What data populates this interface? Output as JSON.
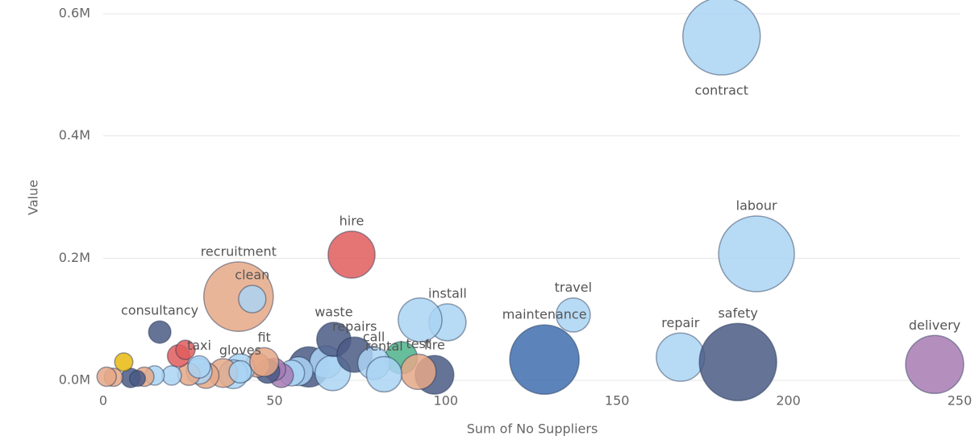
{
  "chart_data": {
    "type": "scatter",
    "x_label": "Sum of No Suppliers",
    "y_label": "Value",
    "xlim": [
      0,
      250
    ],
    "xticks": [
      0,
      50,
      100,
      150,
      200,
      250
    ],
    "ylim": [
      0,
      600000
    ],
    "yticks": [
      {
        "value": 0,
        "label": "0.0M"
      },
      {
        "value": 200000,
        "label": "0.2M"
      },
      {
        "value": 400000,
        "label": "0.4M"
      },
      {
        "value": 600000,
        "label": "0.6M"
      }
    ],
    "grid": true,
    "series": [
      {
        "x": [
          60,
          65,
          67,
          57,
          55,
          52,
          50,
          48,
          45,
          40,
          38,
          35,
          30,
          28,
          25,
          22,
          24,
          20,
          15,
          12,
          8,
          6,
          3,
          1,
          10,
          180.5,
          190.7,
          72.5,
          39.5,
          43.5,
          16.5,
          100.5,
          92.5,
          137.2,
          168.5,
          185.3,
          128.8,
          242.7,
          96.7,
          67.3,
          73.4,
          87,
          92,
          79,
          82,
          47,
          28,
          40
        ],
        "values": [
          22000,
          30000,
          12000,
          15000,
          12000,
          8000,
          18000,
          15000,
          25000,
          20000,
          10000,
          12000,
          8000,
          15000,
          10000,
          40000,
          50000,
          8000,
          8000,
          6000,
          4000,
          30000,
          5000,
          6000,
          3000,
          563000,
          207000,
          205700,
          137000,
          133000,
          79000,
          95000,
          99000,
          107000,
          38000,
          30000,
          34000,
          26000,
          9000,
          67000,
          42000,
          37000,
          14000,
          28000,
          10000,
          30000,
          22000,
          14000
        ],
        "sizes": [
          39,
          25,
          30,
          20,
          16,
          14,
          12,
          14,
          14,
          20,
          20,
          20,
          16,
          16,
          12,
          12,
          9,
          9,
          9,
          9,
          9,
          8,
          8,
          9,
          6,
          144,
          138,
          53,
          116,
          18,
          12,
          33,
          46,
          28,
          56,
          144,
          116,
          81,
          36,
          28,
          30,
          25,
          30,
          25,
          30,
          20,
          12,
          12
        ],
        "colors": [
          "#4a5a85",
          "#aad3f3",
          "#aad3f3",
          "#aad3f3",
          "#aad3f3",
          "#a77bb3",
          "#a77bb3",
          "#4a5a85",
          "#e5a887",
          "#aad3f3",
          "#aad3f3",
          "#e5a887",
          "#e5a887",
          "#aad3f3",
          "#e5a887",
          "#e05d5d",
          "#e05d5d",
          "#aad3f3",
          "#aad3f3",
          "#e5a887",
          "#4a5a85",
          "#e9b90e",
          "#e5a887",
          "#e5a887",
          "#4a5a85",
          "#aad3f3",
          "#aad3f3",
          "#e05d5d",
          "#e5a887",
          "#aad3f3",
          "#4a5a85",
          "#aad3f3",
          "#aad3f3",
          "#aad3f3",
          "#aad3f3",
          "#4a5a85",
          "#3f6fae",
          "#a77bb3",
          "#4a5a85",
          "#4a5a85",
          "#4a5a85",
          "#4db38a",
          "#e5a887",
          "#aad3f3",
          "#aad3f3",
          "#e5a887",
          "#aad3f3",
          "#aad3f3"
        ],
        "labels": [
          null,
          null,
          null,
          null,
          null,
          null,
          null,
          null,
          null,
          null,
          null,
          null,
          null,
          null,
          null,
          null,
          null,
          null,
          null,
          null,
          null,
          null,
          null,
          null,
          null,
          "contract",
          "labour",
          "hire",
          "recruitment",
          "clean",
          "consultancy",
          "install",
          null,
          "travel",
          "repair",
          "safety",
          "maintenance",
          "delivery",
          "fire",
          "waste",
          "repairs",
          null,
          "test",
          "call",
          "rental",
          "fit",
          "taxi",
          "gloves"
        ]
      }
    ]
  }
}
